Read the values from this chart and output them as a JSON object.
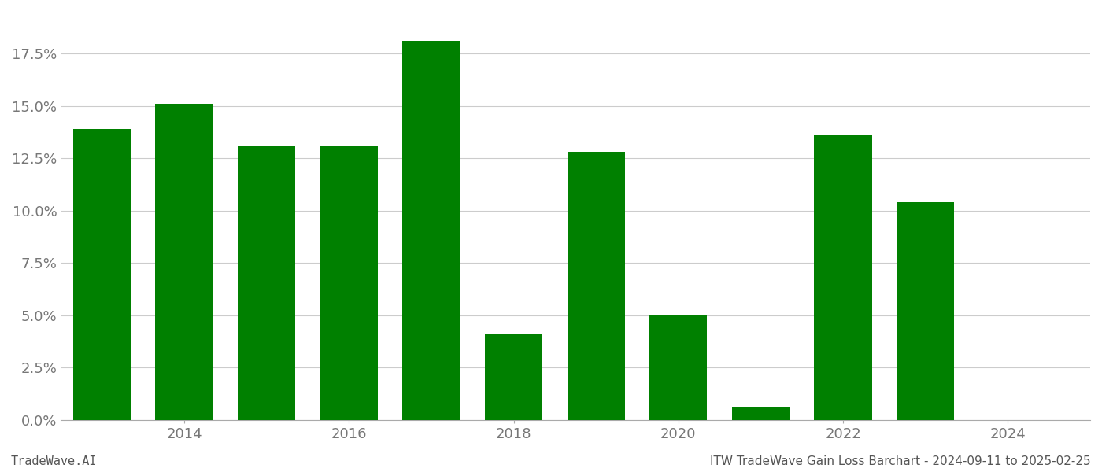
{
  "years": [
    2013,
    2014,
    2015,
    2016,
    2017,
    2018,
    2019,
    2020,
    2021,
    2022,
    2023,
    2024
  ],
  "values": [
    0.139,
    0.151,
    0.131,
    0.131,
    0.181,
    0.041,
    0.128,
    0.05,
    0.0065,
    0.136,
    0.104,
    0.0
  ],
  "bar_color": "#008000",
  "background_color": "#ffffff",
  "grid_color": "#cccccc",
  "ylim": [
    0,
    0.195
  ],
  "yticks": [
    0.0,
    0.025,
    0.05,
    0.075,
    0.1,
    0.125,
    0.15,
    0.175
  ],
  "xticks": [
    2014,
    2016,
    2018,
    2020,
    2022,
    2024
  ],
  "tick_fontsize": 13,
  "footer_left": "TradeWave.AI",
  "footer_right": "ITW TradeWave Gain Loss Barchart - 2024-09-11 to 2025-02-25",
  "footer_fontsize": 11
}
